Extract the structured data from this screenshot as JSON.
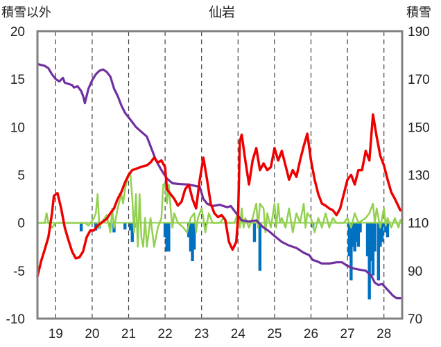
{
  "chart_data": {
    "type": "line",
    "title": "仙岩",
    "left_axis_label": "積雪以外",
    "right_axis_label": "積雪",
    "x_ticks": [
      "19",
      "20",
      "21",
      "22",
      "23",
      "24",
      "25",
      "26",
      "27",
      "28"
    ],
    "x_range": [
      18.5,
      28.5
    ],
    "left_ylim": [
      -10,
      20
    ],
    "left_yticks": [
      -10,
      -5,
      0,
      5,
      10,
      15,
      20
    ],
    "right_ylim": [
      70,
      190
    ],
    "right_yticks": [
      70,
      90,
      110,
      130,
      150,
      170,
      190
    ],
    "grid": "dashed vertical at each day",
    "colors": {
      "temperature": "#ee0000",
      "snow_depth": "#7030a0",
      "green_series": "#92d050",
      "bars": "#0070c0",
      "zero_line": "#92d050",
      "frame": "#808080",
      "grid": "#404040"
    },
    "series": [
      {
        "axis": "left",
        "color": "#ee0000",
        "points": [
          [
            18.5,
            -5.6
          ],
          [
            18.6,
            -4.0
          ],
          [
            18.7,
            -2.8
          ],
          [
            18.8,
            -1.5
          ],
          [
            18.9,
            1.0
          ],
          [
            18.95,
            2.8
          ],
          [
            19.05,
            3.1
          ],
          [
            19.15,
            1.5
          ],
          [
            19.25,
            -0.5
          ],
          [
            19.35,
            -1.8
          ],
          [
            19.45,
            -3.0
          ],
          [
            19.55,
            -3.7
          ],
          [
            19.65,
            -3.6
          ],
          [
            19.75,
            -3.0
          ],
          [
            19.85,
            -1.5
          ],
          [
            19.95,
            -0.8
          ],
          [
            20.05,
            -0.8
          ],
          [
            20.15,
            -0.3
          ],
          [
            20.25,
            0.0
          ],
          [
            20.4,
            0.4
          ],
          [
            20.5,
            1.0
          ],
          [
            20.6,
            1.5
          ],
          [
            20.7,
            2.5
          ],
          [
            20.8,
            3.2
          ],
          [
            20.9,
            4.2
          ],
          [
            21.0,
            5.0
          ],
          [
            21.1,
            5.5
          ],
          [
            21.25,
            5.7
          ],
          [
            21.4,
            5.9
          ],
          [
            21.5,
            6.0
          ],
          [
            21.6,
            6.3
          ],
          [
            21.7,
            6.8
          ],
          [
            21.8,
            6.3
          ],
          [
            21.9,
            6.5
          ],
          [
            22.0,
            5.8
          ],
          [
            22.05,
            3.5
          ],
          [
            22.15,
            3.0
          ],
          [
            22.25,
            2.5
          ],
          [
            22.35,
            1.8
          ],
          [
            22.45,
            2.2
          ],
          [
            22.55,
            3.5
          ],
          [
            22.65,
            4.0
          ],
          [
            22.75,
            2.5
          ],
          [
            22.85,
            1.5
          ],
          [
            22.95,
            4.5
          ],
          [
            23.05,
            6.8
          ],
          [
            23.15,
            4.5
          ],
          [
            23.25,
            2.0
          ],
          [
            23.35,
            1.0
          ],
          [
            23.45,
            0.6
          ],
          [
            23.55,
            0.8
          ],
          [
            23.65,
            0.3
          ],
          [
            23.75,
            -2.0
          ],
          [
            23.85,
            -2.8
          ],
          [
            23.95,
            -2.0
          ],
          [
            24.0,
            0.5
          ],
          [
            24.05,
            8.5
          ],
          [
            24.1,
            9.2
          ],
          [
            24.2,
            6.5
          ],
          [
            24.3,
            4.0
          ],
          [
            24.4,
            6.5
          ],
          [
            24.5,
            7.8
          ],
          [
            24.6,
            5.5
          ],
          [
            24.7,
            6.2
          ],
          [
            24.8,
            5.5
          ],
          [
            24.9,
            5.8
          ],
          [
            25.0,
            7.8
          ],
          [
            25.1,
            6.5
          ],
          [
            25.2,
            7.5
          ],
          [
            25.3,
            6.0
          ],
          [
            25.4,
            4.5
          ],
          [
            25.5,
            5.5
          ],
          [
            25.6,
            4.8
          ],
          [
            25.7,
            6.5
          ],
          [
            25.8,
            8.0
          ],
          [
            25.9,
            9.3
          ],
          [
            26.0,
            6.5
          ],
          [
            26.1,
            4.5
          ],
          [
            26.2,
            3.0
          ],
          [
            26.3,
            2.0
          ],
          [
            26.4,
            1.8
          ],
          [
            26.5,
            1.5
          ],
          [
            26.6,
            1.3
          ],
          [
            26.7,
            0.8
          ],
          [
            26.8,
            1.5
          ],
          [
            26.9,
            3.0
          ],
          [
            27.0,
            4.5
          ],
          [
            27.1,
            5.0
          ],
          [
            27.2,
            4.0
          ],
          [
            27.3,
            5.5
          ],
          [
            27.4,
            5.5
          ],
          [
            27.5,
            7.5
          ],
          [
            27.6,
            6.5
          ],
          [
            27.7,
            11.3
          ],
          [
            27.8,
            9.0
          ],
          [
            27.9,
            7.0
          ],
          [
            28.0,
            6.0
          ],
          [
            28.1,
            4.5
          ],
          [
            28.2,
            3.2
          ],
          [
            28.3,
            2.5
          ],
          [
            28.45,
            1.3
          ]
        ]
      },
      {
        "axis": "right",
        "color": "#7030a0",
        "points": [
          [
            18.5,
            176.3
          ],
          [
            18.7,
            175.5
          ],
          [
            18.8,
            174.5
          ],
          [
            18.9,
            172.0
          ],
          [
            19.0,
            170.0
          ],
          [
            19.1,
            169.0
          ],
          [
            19.2,
            170.5
          ],
          [
            19.25,
            168.5
          ],
          [
            19.35,
            168.0
          ],
          [
            19.45,
            167.5
          ],
          [
            19.5,
            166.5
          ],
          [
            19.6,
            167.0
          ],
          [
            19.7,
            165.0
          ],
          [
            19.75,
            163.0
          ],
          [
            19.8,
            160.0
          ],
          [
            19.9,
            166.0
          ],
          [
            20.0,
            169.5
          ],
          [
            20.1,
            172.0
          ],
          [
            20.2,
            173.5
          ],
          [
            20.3,
            174.0
          ],
          [
            20.4,
            173.0
          ],
          [
            20.5,
            171.0
          ],
          [
            20.6,
            166.0
          ],
          [
            20.7,
            163.0
          ],
          [
            20.8,
            159.0
          ],
          [
            20.9,
            156.0
          ],
          [
            21.0,
            154.0
          ],
          [
            21.1,
            152.0
          ],
          [
            21.2,
            150.0
          ],
          [
            21.35,
            148.0
          ],
          [
            21.5,
            146.0
          ],
          [
            21.6,
            142.0
          ],
          [
            21.75,
            136.0
          ],
          [
            21.9,
            132.0
          ],
          [
            22.05,
            128.5
          ],
          [
            22.2,
            126.5
          ],
          [
            22.4,
            126.2
          ],
          [
            22.6,
            126.0
          ],
          [
            22.8,
            125.5
          ],
          [
            22.95,
            125.0
          ],
          [
            23.05,
            120.0
          ],
          [
            23.15,
            118.0
          ],
          [
            23.3,
            117.0
          ],
          [
            23.5,
            117.5
          ],
          [
            23.7,
            116.5
          ],
          [
            23.8,
            117.0
          ],
          [
            23.9,
            115.0
          ],
          [
            24.0,
            113.0
          ],
          [
            24.1,
            111.0
          ],
          [
            24.3,
            110.5
          ],
          [
            24.5,
            111.0
          ],
          [
            24.6,
            109.5
          ],
          [
            24.7,
            108.0
          ],
          [
            24.85,
            106.5
          ],
          [
            25.0,
            104.5
          ],
          [
            25.2,
            102.0
          ],
          [
            25.4,
            100.5
          ],
          [
            25.6,
            99.5
          ],
          [
            25.8,
            97.5
          ],
          [
            25.95,
            96.5
          ],
          [
            26.05,
            94.5
          ],
          [
            26.15,
            94.0
          ],
          [
            26.3,
            93.0
          ],
          [
            26.5,
            93.0
          ],
          [
            26.7,
            93.5
          ],
          [
            26.85,
            93.5
          ],
          [
            27.0,
            92.0
          ],
          [
            27.15,
            91.0
          ],
          [
            27.3,
            90.5
          ],
          [
            27.5,
            90.0
          ],
          [
            27.65,
            88.0
          ],
          [
            27.75,
            85.0
          ],
          [
            27.85,
            84.0
          ],
          [
            27.95,
            84.5
          ],
          [
            28.1,
            82.0
          ],
          [
            28.25,
            79.5
          ],
          [
            28.35,
            78.5
          ],
          [
            28.45,
            78.5
          ]
        ]
      },
      {
        "axis": "left",
        "color": "#92d050",
        "points": [
          [
            18.5,
            0
          ],
          [
            18.7,
            0
          ],
          [
            18.75,
            1.0
          ],
          [
            18.8,
            0
          ],
          [
            18.9,
            -0.5
          ],
          [
            19.0,
            0
          ],
          [
            19.8,
            0
          ],
          [
            19.9,
            -0.3
          ],
          [
            20.05,
            0.5
          ],
          [
            20.1,
            1.0
          ],
          [
            20.15,
            3.0
          ],
          [
            20.2,
            -0.5
          ],
          [
            20.25,
            0
          ],
          [
            20.4,
            0.8
          ],
          [
            20.5,
            -1.0
          ],
          [
            20.55,
            1.5
          ],
          [
            20.6,
            -0.5
          ],
          [
            20.7,
            1.5
          ],
          [
            20.8,
            3.0
          ],
          [
            20.85,
            2.0
          ],
          [
            20.9,
            3.5
          ],
          [
            21.0,
            5.0
          ],
          [
            21.05,
            5.0
          ],
          [
            21.1,
            2.5
          ],
          [
            21.15,
            -1.0
          ],
          [
            21.2,
            3.0
          ],
          [
            21.25,
            -2.5
          ],
          [
            21.3,
            3.0
          ],
          [
            21.35,
            -1.5
          ],
          [
            21.4,
            -2.5
          ],
          [
            21.45,
            0.5
          ],
          [
            21.5,
            -2.5
          ],
          [
            21.6,
            0.5
          ],
          [
            21.7,
            -2.5
          ],
          [
            21.8,
            -0.5
          ],
          [
            21.9,
            0.5
          ],
          [
            21.95,
            4.0
          ],
          [
            22.0,
            4.0
          ],
          [
            22.05,
            2.0
          ],
          [
            22.1,
            4.0
          ],
          [
            22.15,
            1.5
          ],
          [
            22.2,
            -0.5
          ],
          [
            22.25,
            1.0
          ],
          [
            22.35,
            0
          ],
          [
            22.5,
            -0.5
          ],
          [
            22.6,
            -1.0
          ],
          [
            22.7,
            0.5
          ],
          [
            22.8,
            1.0
          ],
          [
            22.85,
            -1.0
          ],
          [
            22.9,
            0.5
          ],
          [
            23.0,
            1.5
          ],
          [
            23.05,
            0.5
          ],
          [
            23.1,
            -1.0
          ],
          [
            23.2,
            1.0
          ],
          [
            23.3,
            0
          ],
          [
            23.5,
            0
          ],
          [
            23.6,
            0.5
          ],
          [
            23.7,
            0
          ],
          [
            23.9,
            0
          ],
          [
            24.0,
            1.0
          ],
          [
            24.05,
            -0.5
          ],
          [
            24.1,
            1.5
          ],
          [
            24.15,
            -0.5
          ],
          [
            24.2,
            0.5
          ],
          [
            24.3,
            -0.5
          ],
          [
            24.4,
            0.5
          ],
          [
            24.5,
            2.0
          ],
          [
            24.55,
            -0.5
          ],
          [
            24.6,
            2.0
          ],
          [
            24.7,
            1.5
          ],
          [
            24.75,
            -1.0
          ],
          [
            24.8,
            1.0
          ],
          [
            24.9,
            -0.5
          ],
          [
            25.0,
            2.0
          ],
          [
            25.05,
            -0.5
          ],
          [
            25.1,
            2.0
          ],
          [
            25.15,
            0
          ],
          [
            25.2,
            0.5
          ],
          [
            25.3,
            -0.5
          ],
          [
            25.4,
            1.5
          ],
          [
            25.5,
            -1.0
          ],
          [
            25.6,
            1.0
          ],
          [
            25.7,
            0
          ],
          [
            25.8,
            2.0
          ],
          [
            25.85,
            -0.5
          ],
          [
            25.9,
            1.0
          ],
          [
            26.0,
            0.5
          ],
          [
            26.1,
            -1.0
          ],
          [
            26.2,
            0.5
          ],
          [
            26.3,
            -0.5
          ],
          [
            26.4,
            1.0
          ],
          [
            26.5,
            -0.5
          ],
          [
            26.6,
            0.5
          ],
          [
            26.7,
            0
          ],
          [
            26.9,
            0
          ],
          [
            27.0,
            0.5
          ],
          [
            27.1,
            -0.5
          ],
          [
            27.2,
            1.0
          ],
          [
            27.3,
            0
          ],
          [
            27.5,
            0.5
          ],
          [
            27.6,
            1.0
          ],
          [
            27.7,
            2.0
          ],
          [
            27.75,
            0
          ],
          [
            27.8,
            1.5
          ],
          [
            27.9,
            -0.5
          ],
          [
            28.0,
            1.5
          ],
          [
            28.05,
            -0.3
          ],
          [
            28.1,
            0.5
          ],
          [
            28.2,
            -0.5
          ],
          [
            28.3,
            0.5
          ],
          [
            28.4,
            -0.5
          ],
          [
            28.45,
            0.3
          ]
        ]
      }
    ],
    "bars": {
      "axis": "left",
      "color": "#0070c0",
      "x": [
        19.7,
        20.1,
        20.2,
        20.5,
        20.6,
        20.9,
        21.05,
        21.1,
        21.15,
        22.0,
        22.05,
        22.1,
        22.65,
        22.7,
        22.75,
        22.8,
        23.1,
        24.45,
        24.6,
        26.05,
        27.05,
        27.1,
        27.15,
        27.2,
        27.25,
        27.3,
        27.35,
        27.55,
        27.6,
        27.65,
        27.7,
        27.75,
        27.85,
        27.9,
        27.95,
        28.05,
        28.1
      ],
      "values": [
        -0.9,
        -0.8,
        -0.6,
        -0.5,
        -1.0,
        -0.7,
        -0.8,
        -2.0,
        -0.5,
        -1.5,
        -3.0,
        -3.0,
        -1.5,
        -3.0,
        -4.0,
        -2.8,
        -0.5,
        -2.0,
        -5.0,
        -0.5,
        -3.5,
        -6.0,
        -2.5,
        -3.0,
        -2.0,
        -2.5,
        -1.0,
        -3.5,
        -8.0,
        -4.0,
        -5.5,
        -3.0,
        -6.0,
        -2.5,
        -2.0,
        -1.0,
        -1.5
      ]
    }
  }
}
